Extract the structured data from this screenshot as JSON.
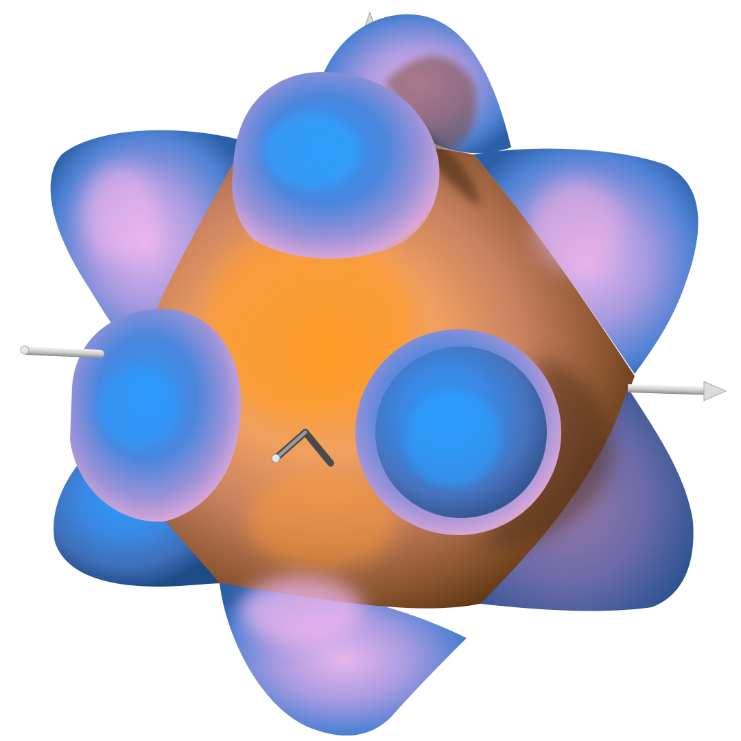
{
  "scene": {
    "subject": "isosurface-with-coordinate-axes",
    "background_color": "#ffffff",
    "colors": {
      "lobe_blue": "#2f8cf0",
      "lobe_blue_dark": "#1a4f8f",
      "lobe_blue_highlight": "#4aa8ff",
      "body_orange": "#f09a3a",
      "body_orange_dark": "#5e3510",
      "rim_pink": "#e8b2e6",
      "axis_gray": "#c8c8c8",
      "axis_dark": "#555555"
    },
    "lobes_visible": 9,
    "axes": [
      "x-axis-arrow",
      "y-axis-arrow",
      "z-axis-arrow"
    ]
  }
}
